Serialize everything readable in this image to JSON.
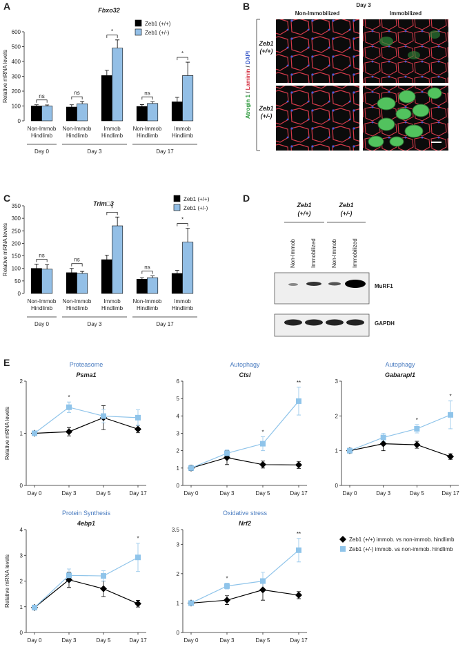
{
  "panel_labels": [
    "A",
    "B",
    "C",
    "D",
    "E"
  ],
  "chart_data": [
    {
      "type": "bar",
      "title": "Fbxo32",
      "ylabel": "Relative mRNA levels",
      "categories": [
        [
          "Non-Immob",
          "Hindlimb"
        ],
        [
          "Non-Immob",
          "Hindlimb"
        ],
        [
          "Immob",
          "Hindlimb"
        ],
        [
          "Non-Immob",
          "Hindlimb"
        ],
        [
          "Immob",
          "Hindlimb"
        ]
      ],
      "group_labels": [
        "Day  0",
        "Day 3",
        "Day 17"
      ],
      "series": [
        {
          "name": "Zeb1 (+/+)",
          "color": "#000000",
          "values": [
            100,
            93,
            305,
            97,
            128
          ],
          "errors": [
            8,
            15,
            35,
            12,
            30
          ]
        },
        {
          "name": "Zeb1 (+/-)",
          "color": "#93bfe6",
          "values": [
            100,
            115,
            490,
            117,
            305
          ],
          "errors": [
            7,
            15,
            55,
            12,
            90
          ]
        }
      ],
      "significance": [
        "ns",
        "ns",
        "*",
        "ns",
        "*"
      ],
      "ylim": [
        0,
        600
      ],
      "yticks": [
        0,
        100,
        200,
        300,
        400,
        500,
        600
      ]
    },
    {
      "type": "bar",
      "title": "Trim□3",
      "ylabel": "Relative mRNA levels",
      "categories": [
        [
          "Non-Immob",
          "Hindlimb"
        ],
        [
          "Non-Immob",
          "Hindlimb"
        ],
        [
          "Immob",
          "Hindlimb"
        ],
        [
          "Non-Immob",
          "Hindlimb"
        ],
        [
          "Immob",
          "Hindlimb"
        ]
      ],
      "group_labels": [
        "Day  0",
        "Day 3",
        "Day 17"
      ],
      "series": [
        {
          "name": "Zeb1 (+/+)",
          "color": "#000000",
          "values": [
            100,
            83,
            135,
            57,
            80
          ],
          "errors": [
            17,
            17,
            18,
            6,
            12
          ]
        },
        {
          "name": "Zeb1 (+/-)",
          "color": "#93bfe6",
          "values": [
            97,
            80,
            270,
            63,
            205
          ],
          "errors": [
            18,
            8,
            35,
            7,
            55
          ]
        }
      ],
      "significance": [
        "ns",
        "ns",
        "*",
        "ns",
        "*"
      ],
      "ylim": [
        0,
        350
      ],
      "yticks": [
        0,
        50,
        100,
        150,
        200,
        250,
        300,
        350
      ]
    },
    {
      "type": "line",
      "category": "Proteasome",
      "title": "Psma1",
      "ylabel": "Relative mRNA levels",
      "categories": [
        "Day 0",
        "Day 3",
        "Day 5",
        "Day 17"
      ],
      "series": [
        {
          "color": "#000000",
          "marker": "diamond",
          "values": [
            1.0,
            1.03,
            1.3,
            1.08
          ],
          "errors": [
            0.04,
            0.08,
            0.23,
            0.07
          ]
        },
        {
          "color": "#8fc4ea",
          "marker": "square",
          "values": [
            1.0,
            1.5,
            1.33,
            1.3
          ],
          "errors": [
            0.03,
            0.1,
            0.13,
            0.15
          ]
        }
      ],
      "significance": [
        null,
        "*",
        null,
        null
      ],
      "ylim": [
        0,
        2
      ],
      "yticks": [
        0,
        1,
        2
      ]
    },
    {
      "type": "line",
      "category": "Autophagy",
      "title": "Ctsl",
      "categories": [
        "Day 0",
        "Day 3",
        "Day 5",
        "Day 17"
      ],
      "series": [
        {
          "color": "#000000",
          "marker": "diamond",
          "values": [
            1.0,
            1.6,
            1.2,
            1.18
          ],
          "errors": [
            0.15,
            0.4,
            0.2,
            0.2
          ]
        },
        {
          "color": "#8fc4ea",
          "marker": "square",
          "values": [
            1.0,
            1.85,
            2.4,
            4.85
          ],
          "errors": [
            0.1,
            0.2,
            0.4,
            0.8
          ]
        }
      ],
      "significance": [
        null,
        null,
        "*",
        "**"
      ],
      "ylim": [
        0,
        6
      ],
      "yticks": [
        0,
        1,
        2,
        3,
        4,
        5,
        6
      ]
    },
    {
      "type": "line",
      "category": "Autophagy",
      "title": "Gabarapl1",
      "categories": [
        "Day 0",
        "Day 3",
        "Day 5",
        "Day 17"
      ],
      "series": [
        {
          "color": "#000000",
          "marker": "diamond",
          "values": [
            1.0,
            1.2,
            1.17,
            0.83
          ],
          "errors": [
            0.07,
            0.2,
            0.1,
            0.08
          ]
        },
        {
          "color": "#8fc4ea",
          "marker": "square",
          "values": [
            1.0,
            1.38,
            1.63,
            2.03
          ],
          "errors": [
            0.05,
            0.12,
            0.12,
            0.4
          ]
        }
      ],
      "significance": [
        null,
        null,
        "*",
        "*"
      ],
      "ylim": [
        0,
        3
      ],
      "yticks": [
        0,
        1,
        2,
        3
      ]
    },
    {
      "type": "line",
      "category": "Protein Synthesis",
      "title": "4ebp1",
      "ylabel": "Relative mRNA levels",
      "categories": [
        "Day 0",
        "Day 3",
        "Day 5",
        "Day 17"
      ],
      "series": [
        {
          "color": "#000000",
          "marker": "diamond",
          "values": [
            0.97,
            2.05,
            1.7,
            1.12
          ],
          "errors": [
            0.08,
            0.3,
            0.3,
            0.13
          ]
        },
        {
          "color": "#8fc4ea",
          "marker": "square",
          "values": [
            0.97,
            2.22,
            2.2,
            2.92
          ],
          "errors": [
            0.06,
            0.25,
            0.2,
            0.55
          ]
        }
      ],
      "significance": [
        null,
        null,
        null,
        "*"
      ],
      "ylim": [
        0,
        4
      ],
      "yticks": [
        0,
        1,
        2,
        3,
        4
      ]
    },
    {
      "type": "line",
      "category": "Oxidative stress",
      "title": "Nrf2",
      "categories": [
        "Day 0",
        "Day 3",
        "Day 5",
        "Day 17"
      ],
      "series": [
        {
          "name": "Zeb1 (+/+) immob. vs non-immob. hindlimb",
          "color": "#000000",
          "marker": "diamond",
          "values": [
            1.0,
            1.1,
            1.45,
            1.27
          ],
          "errors": [
            0.07,
            0.15,
            0.35,
            0.12
          ]
        },
        {
          "name": "Zeb1 (+/-) immob. vs non-immob. hindlimb",
          "color": "#8fc4ea",
          "marker": "square",
          "values": [
            1.0,
            1.58,
            1.75,
            2.8
          ],
          "errors": [
            0.08,
            0.1,
            0.3,
            0.4
          ]
        }
      ],
      "significance": [
        null,
        "*",
        null,
        "**"
      ],
      "ylim": [
        0,
        3.5
      ],
      "yticks": [
        0,
        1,
        2,
        3,
        3.5
      ]
    }
  ],
  "panel_b": {
    "title": "Day 3",
    "columns": [
      "Non-Immobilized",
      "Immobilized"
    ],
    "rows": [
      [
        "Zeb1",
        "(+/+)"
      ],
      [
        "Zeb1",
        "(+/-)"
      ]
    ],
    "stain": [
      "Atrogin 1",
      " / ",
      "Laminin",
      " / ",
      "DAPI"
    ]
  },
  "panel_d": {
    "genotypes": [
      [
        "Zeb1",
        "(+/+)"
      ],
      [
        "Zeb1",
        "(+/-)"
      ]
    ],
    "lanes": [
      "Non-Immob",
      "Immobilized",
      "Non-Immob",
      "Immobilized"
    ],
    "proteins": [
      "MuRF1",
      "GAPDH"
    ]
  }
}
